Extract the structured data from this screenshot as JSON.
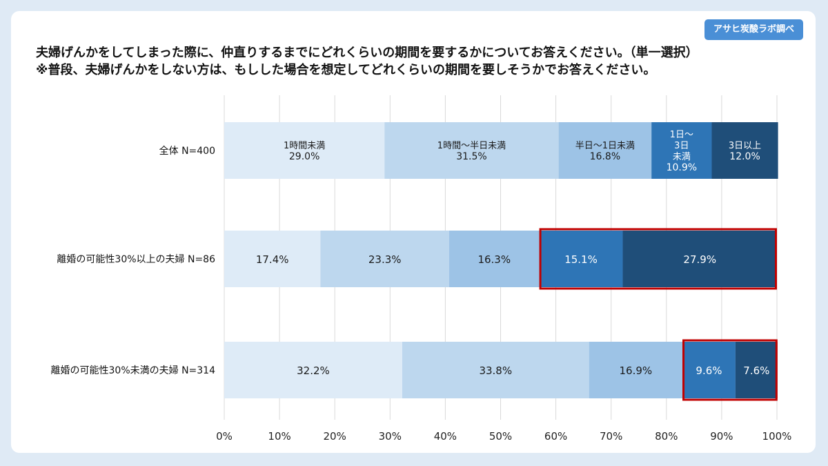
{
  "badge": "アサヒ炭酸ラボ調べ",
  "title": {
    "line1": "夫婦げんかをしてしまった際に、仲直りするまでにどれくらいの期間を要するかについてお答えください。（単一選択）",
    "line2": "※普段、夫婦げんかをしない方は、もしした場合を想定してどれくらいの期間を要しそうかでお答えください。"
  },
  "chart_data": {
    "type": "bar",
    "orientation": "horizontal",
    "stacked": true,
    "categories": [
      "全体 N=400",
      "離婚の可能性30%以上の夫婦 N=86",
      "離婚の可能性30%未満の夫婦 N=314"
    ],
    "series": [
      {
        "name": "1時間未満",
        "values": [
          29.0,
          17.4,
          32.2
        ],
        "color": "#deebf7"
      },
      {
        "name": "1時間～半日未満",
        "values": [
          31.5,
          23.3,
          33.8
        ],
        "color": "#bdd7ee"
      },
      {
        "name": "半日～1日未満",
        "values": [
          16.8,
          16.3,
          16.9
        ],
        "color": "#9dc3e6"
      },
      {
        "name": "1日～3日未満",
        "values": [
          10.9,
          15.1,
          9.6
        ],
        "color": "#2e75b6"
      },
      {
        "name": "3日以上",
        "values": [
          12.0,
          27.9,
          7.6
        ],
        "color": "#1f4e79"
      }
    ],
    "xlim": [
      0,
      100
    ],
    "xticks": [
      "0%",
      "10%",
      "20%",
      "30%",
      "40%",
      "50%",
      "60%",
      "70%",
      "80%",
      "90%",
      "100%"
    ],
    "grid": true,
    "segment_labels_first_row": [
      [
        "1時間未満",
        "29.0%"
      ],
      [
        "1時間～半日未満",
        "31.5%"
      ],
      [
        "半日～1日未満",
        "16.8%"
      ],
      [
        "1日～",
        "3日",
        "未満",
        "10.9%"
      ],
      [
        "3日以上",
        "12.0%"
      ]
    ],
    "highlights": [
      {
        "row": 1,
        "from_series": 3,
        "to_series": 4,
        "color": "#c00000"
      },
      {
        "row": 2,
        "from_series": 3,
        "to_series": 4,
        "color": "#c00000"
      }
    ]
  }
}
